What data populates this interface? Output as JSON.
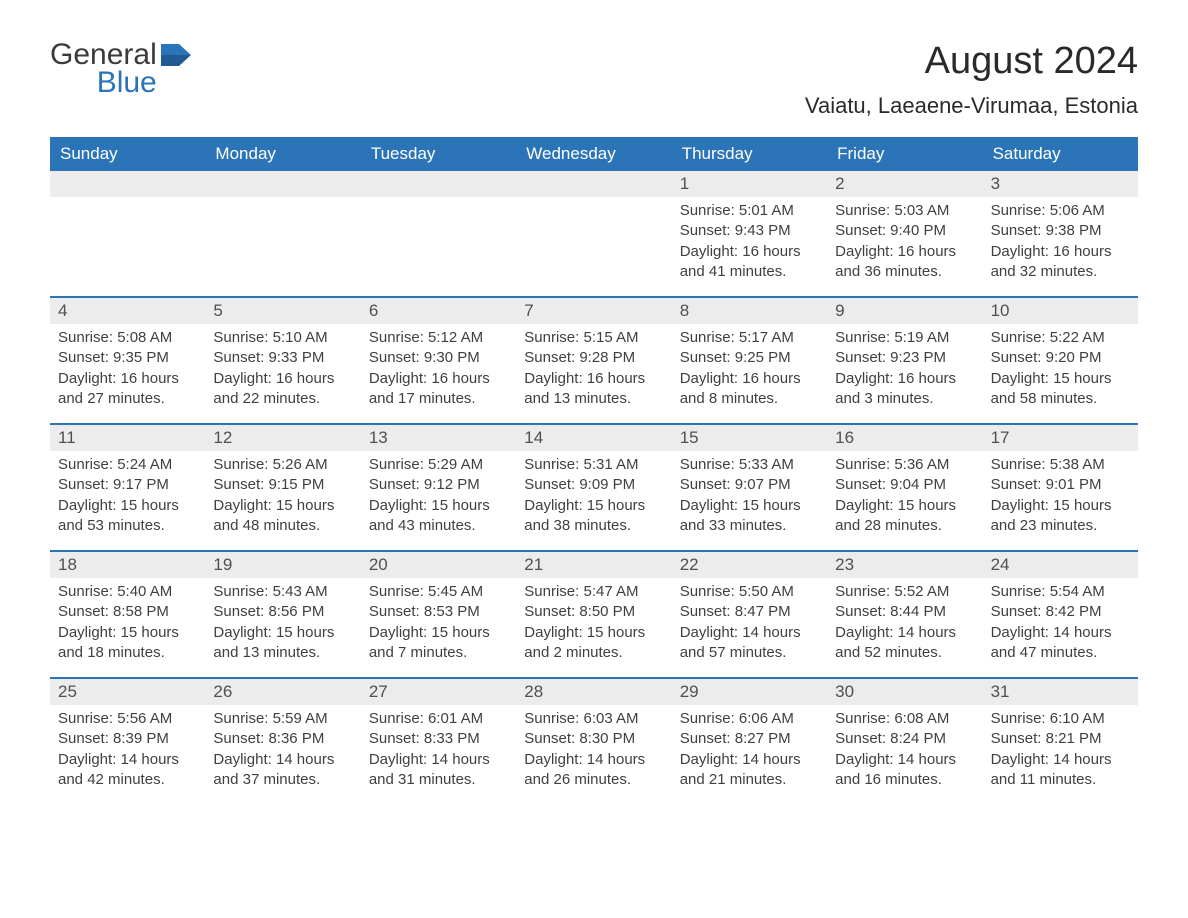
{
  "logo": {
    "text1": "General",
    "text2": "Blue",
    "icon_color": "#2b74b8"
  },
  "title": "August 2024",
  "location": "Vaiatu, Laeaene-Virumaa, Estonia",
  "colors": {
    "header_bg": "#2b74b8",
    "header_text": "#ffffff",
    "row_border": "#2b74b8",
    "daynum_bg": "#ececec",
    "body_text": "#404040",
    "page_bg": "#ffffff"
  },
  "day_names": [
    "Sunday",
    "Monday",
    "Tuesday",
    "Wednesday",
    "Thursday",
    "Friday",
    "Saturday"
  ],
  "weeks": [
    [
      {
        "empty": true
      },
      {
        "empty": true
      },
      {
        "empty": true
      },
      {
        "empty": true
      },
      {
        "day": "1",
        "sunrise": "Sunrise: 5:01 AM",
        "sunset": "Sunset: 9:43 PM",
        "daylight1": "Daylight: 16 hours",
        "daylight2": "and 41 minutes."
      },
      {
        "day": "2",
        "sunrise": "Sunrise: 5:03 AM",
        "sunset": "Sunset: 9:40 PM",
        "daylight1": "Daylight: 16 hours",
        "daylight2": "and 36 minutes."
      },
      {
        "day": "3",
        "sunrise": "Sunrise: 5:06 AM",
        "sunset": "Sunset: 9:38 PM",
        "daylight1": "Daylight: 16 hours",
        "daylight2": "and 32 minutes."
      }
    ],
    [
      {
        "day": "4",
        "sunrise": "Sunrise: 5:08 AM",
        "sunset": "Sunset: 9:35 PM",
        "daylight1": "Daylight: 16 hours",
        "daylight2": "and 27 minutes."
      },
      {
        "day": "5",
        "sunrise": "Sunrise: 5:10 AM",
        "sunset": "Sunset: 9:33 PM",
        "daylight1": "Daylight: 16 hours",
        "daylight2": "and 22 minutes."
      },
      {
        "day": "6",
        "sunrise": "Sunrise: 5:12 AM",
        "sunset": "Sunset: 9:30 PM",
        "daylight1": "Daylight: 16 hours",
        "daylight2": "and 17 minutes."
      },
      {
        "day": "7",
        "sunrise": "Sunrise: 5:15 AM",
        "sunset": "Sunset: 9:28 PM",
        "daylight1": "Daylight: 16 hours",
        "daylight2": "and 13 minutes."
      },
      {
        "day": "8",
        "sunrise": "Sunrise: 5:17 AM",
        "sunset": "Sunset: 9:25 PM",
        "daylight1": "Daylight: 16 hours",
        "daylight2": "and 8 minutes."
      },
      {
        "day": "9",
        "sunrise": "Sunrise: 5:19 AM",
        "sunset": "Sunset: 9:23 PM",
        "daylight1": "Daylight: 16 hours",
        "daylight2": "and 3 minutes."
      },
      {
        "day": "10",
        "sunrise": "Sunrise: 5:22 AM",
        "sunset": "Sunset: 9:20 PM",
        "daylight1": "Daylight: 15 hours",
        "daylight2": "and 58 minutes."
      }
    ],
    [
      {
        "day": "11",
        "sunrise": "Sunrise: 5:24 AM",
        "sunset": "Sunset: 9:17 PM",
        "daylight1": "Daylight: 15 hours",
        "daylight2": "and 53 minutes."
      },
      {
        "day": "12",
        "sunrise": "Sunrise: 5:26 AM",
        "sunset": "Sunset: 9:15 PM",
        "daylight1": "Daylight: 15 hours",
        "daylight2": "and 48 minutes."
      },
      {
        "day": "13",
        "sunrise": "Sunrise: 5:29 AM",
        "sunset": "Sunset: 9:12 PM",
        "daylight1": "Daylight: 15 hours",
        "daylight2": "and 43 minutes."
      },
      {
        "day": "14",
        "sunrise": "Sunrise: 5:31 AM",
        "sunset": "Sunset: 9:09 PM",
        "daylight1": "Daylight: 15 hours",
        "daylight2": "and 38 minutes."
      },
      {
        "day": "15",
        "sunrise": "Sunrise: 5:33 AM",
        "sunset": "Sunset: 9:07 PM",
        "daylight1": "Daylight: 15 hours",
        "daylight2": "and 33 minutes."
      },
      {
        "day": "16",
        "sunrise": "Sunrise: 5:36 AM",
        "sunset": "Sunset: 9:04 PM",
        "daylight1": "Daylight: 15 hours",
        "daylight2": "and 28 minutes."
      },
      {
        "day": "17",
        "sunrise": "Sunrise: 5:38 AM",
        "sunset": "Sunset: 9:01 PM",
        "daylight1": "Daylight: 15 hours",
        "daylight2": "and 23 minutes."
      }
    ],
    [
      {
        "day": "18",
        "sunrise": "Sunrise: 5:40 AM",
        "sunset": "Sunset: 8:58 PM",
        "daylight1": "Daylight: 15 hours",
        "daylight2": "and 18 minutes."
      },
      {
        "day": "19",
        "sunrise": "Sunrise: 5:43 AM",
        "sunset": "Sunset: 8:56 PM",
        "daylight1": "Daylight: 15 hours",
        "daylight2": "and 13 minutes."
      },
      {
        "day": "20",
        "sunrise": "Sunrise: 5:45 AM",
        "sunset": "Sunset: 8:53 PM",
        "daylight1": "Daylight: 15 hours",
        "daylight2": "and 7 minutes."
      },
      {
        "day": "21",
        "sunrise": "Sunrise: 5:47 AM",
        "sunset": "Sunset: 8:50 PM",
        "daylight1": "Daylight: 15 hours",
        "daylight2": "and 2 minutes."
      },
      {
        "day": "22",
        "sunrise": "Sunrise: 5:50 AM",
        "sunset": "Sunset: 8:47 PM",
        "daylight1": "Daylight: 14 hours",
        "daylight2": "and 57 minutes."
      },
      {
        "day": "23",
        "sunrise": "Sunrise: 5:52 AM",
        "sunset": "Sunset: 8:44 PM",
        "daylight1": "Daylight: 14 hours",
        "daylight2": "and 52 minutes."
      },
      {
        "day": "24",
        "sunrise": "Sunrise: 5:54 AM",
        "sunset": "Sunset: 8:42 PM",
        "daylight1": "Daylight: 14 hours",
        "daylight2": "and 47 minutes."
      }
    ],
    [
      {
        "day": "25",
        "sunrise": "Sunrise: 5:56 AM",
        "sunset": "Sunset: 8:39 PM",
        "daylight1": "Daylight: 14 hours",
        "daylight2": "and 42 minutes."
      },
      {
        "day": "26",
        "sunrise": "Sunrise: 5:59 AM",
        "sunset": "Sunset: 8:36 PM",
        "daylight1": "Daylight: 14 hours",
        "daylight2": "and 37 minutes."
      },
      {
        "day": "27",
        "sunrise": "Sunrise: 6:01 AM",
        "sunset": "Sunset: 8:33 PM",
        "daylight1": "Daylight: 14 hours",
        "daylight2": "and 31 minutes."
      },
      {
        "day": "28",
        "sunrise": "Sunrise: 6:03 AM",
        "sunset": "Sunset: 8:30 PM",
        "daylight1": "Daylight: 14 hours",
        "daylight2": "and 26 minutes."
      },
      {
        "day": "29",
        "sunrise": "Sunrise: 6:06 AM",
        "sunset": "Sunset: 8:27 PM",
        "daylight1": "Daylight: 14 hours",
        "daylight2": "and 21 minutes."
      },
      {
        "day": "30",
        "sunrise": "Sunrise: 6:08 AM",
        "sunset": "Sunset: 8:24 PM",
        "daylight1": "Daylight: 14 hours",
        "daylight2": "and 16 minutes."
      },
      {
        "day": "31",
        "sunrise": "Sunrise: 6:10 AM",
        "sunset": "Sunset: 8:21 PM",
        "daylight1": "Daylight: 14 hours",
        "daylight2": "and 11 minutes."
      }
    ]
  ]
}
